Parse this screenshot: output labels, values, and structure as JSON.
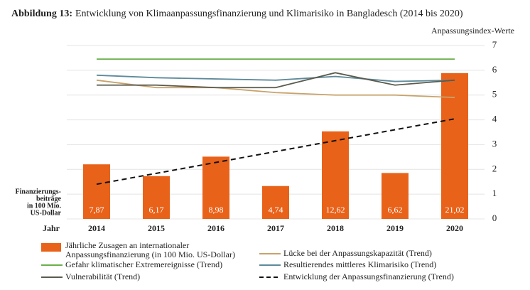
{
  "chart_data": {
    "type": "bar",
    "title_prefix": "Abbildung 13:",
    "title": "Entwicklung von Klimaanpassungsfinanzierung und Klimarisiko in Bangladesch (2014 bis 2020)",
    "ylabel": "Anpassungsindex-Werte",
    "y2label": [
      "Finanzierungs-",
      "beiträge",
      "in 100 Mio.",
      "US-Dollar"
    ],
    "xlabel": "Jahr",
    "categories": [
      "2014",
      "2015",
      "2016",
      "2017",
      "2018",
      "2019",
      "2020"
    ],
    "ylim": [
      0,
      7
    ],
    "yticks": [
      0,
      1,
      2,
      3,
      4,
      5,
      6,
      7
    ],
    "y2lim": [
      0,
      25
    ],
    "grid": true,
    "series": [
      {
        "name": "Jährliche Zusagen an internationaler Anpassungsfinanzierung (in 100 Mio. US-Dollar)",
        "type": "bar",
        "axis": "y2",
        "color": "#e8621a",
        "values": [
          7.87,
          6.17,
          8.98,
          4.74,
          12.62,
          6.62,
          21.02
        ],
        "value_labels": [
          "7,87",
          "6,17",
          "8,98",
          "4,74",
          "12,62",
          "6,62",
          "21,02"
        ]
      },
      {
        "name": "Lücke bei der Anpassungskapazität (Trend)",
        "type": "line",
        "color": "#c8a26a",
        "values": [
          5.6,
          5.3,
          5.3,
          5.1,
          5.0,
          5.0,
          4.9
        ]
      },
      {
        "name": "Gefahr klimatischer Extremereignisse (Trend)",
        "type": "line",
        "color": "#6ab04c",
        "values": [
          6.45,
          6.45,
          6.45,
          6.45,
          6.45,
          6.45,
          6.45
        ]
      },
      {
        "name": "Resultierendes mittleres Klimarisiko (Trend)",
        "type": "line",
        "color": "#5e8a9a",
        "values": [
          5.8,
          5.7,
          5.65,
          5.6,
          5.75,
          5.55,
          5.6
        ]
      },
      {
        "name": "Vulnerabilität (Trend)",
        "type": "line",
        "color": "#5a5a4e",
        "values": [
          5.4,
          5.4,
          5.3,
          5.3,
          5.9,
          5.4,
          5.6
        ]
      },
      {
        "name": "Entwicklung der Anpassungsfinanzierung (Trend)",
        "type": "line",
        "dashed": true,
        "color": "#111111",
        "values": [
          1.4,
          1.84,
          2.28,
          2.72,
          3.16,
          3.6,
          4.04
        ]
      }
    ]
  }
}
